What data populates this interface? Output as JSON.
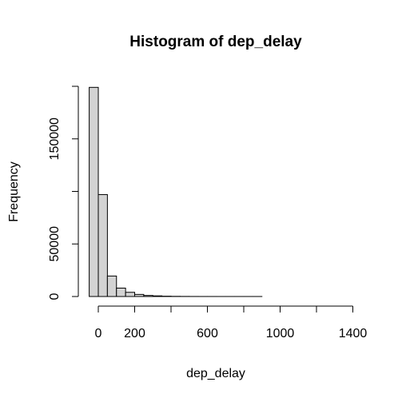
{
  "chart_data": {
    "type": "bar",
    "title": "Histogram of dep_delay",
    "xlabel": "dep_delay",
    "ylabel": "Frequency",
    "bin_width": 50,
    "bins": [
      {
        "x0": -50,
        "x1": 0,
        "count": 199000
      },
      {
        "x0": 0,
        "x1": 50,
        "count": 97000
      },
      {
        "x0": 50,
        "x1": 100,
        "count": 19500
      },
      {
        "x0": 100,
        "x1": 150,
        "count": 8000
      },
      {
        "x0": 150,
        "x1": 200,
        "count": 4000
      },
      {
        "x0": 200,
        "x1": 250,
        "count": 2000
      },
      {
        "x0": 250,
        "x1": 300,
        "count": 1000
      },
      {
        "x0": 300,
        "x1": 350,
        "count": 600
      },
      {
        "x0": 350,
        "x1": 400,
        "count": 300
      },
      {
        "x0": 400,
        "x1": 450,
        "count": 150
      },
      {
        "x0": 450,
        "x1": 500,
        "count": 80
      },
      {
        "x0": 500,
        "x1": 550,
        "count": 40
      },
      {
        "x0": 550,
        "x1": 600,
        "count": 25
      },
      {
        "x0": 600,
        "x1": 650,
        "count": 15
      },
      {
        "x0": 650,
        "x1": 700,
        "count": 10
      },
      {
        "x0": 700,
        "x1": 750,
        "count": 8
      },
      {
        "x0": 750,
        "x1": 800,
        "count": 6
      },
      {
        "x0": 800,
        "x1": 850,
        "count": 5
      },
      {
        "x0": 850,
        "x1": 900,
        "count": 4
      },
      {
        "x0": 900,
        "x1": 950,
        "count": 3
      },
      {
        "x0": 950,
        "x1": 1000,
        "count": 2
      },
      {
        "x0": 1000,
        "x1": 1050,
        "count": 2
      },
      {
        "x0": 1050,
        "x1": 1100,
        "count": 1
      },
      {
        "x0": 1100,
        "x1": 1150,
        "count": 1
      },
      {
        "x0": 1150,
        "x1": 1200,
        "count": 1
      },
      {
        "x0": 1200,
        "x1": 1250,
        "count": 1
      },
      {
        "x0": 1250,
        "x1": 1300,
        "count": 1
      },
      {
        "x0": 1300,
        "x1": 1350,
        "count": 1
      }
    ],
    "x_ticks": [
      0,
      200,
      400,
      600,
      800,
      1000,
      1200,
      1400
    ],
    "x_tick_labels": [
      "0",
      "200",
      "",
      "600",
      "",
      "1000",
      "",
      "1400"
    ],
    "y_ticks": [
      0,
      50000,
      100000,
      150000,
      200000
    ],
    "y_tick_labels": [
      "0",
      "50000",
      "",
      "150000",
      ""
    ],
    "xlim": [
      -50,
      1400
    ],
    "ylim": [
      0,
      200000
    ],
    "bar_fill": "#d3d3d3",
    "bar_stroke": "#000000",
    "grid": false,
    "legend": "none"
  }
}
